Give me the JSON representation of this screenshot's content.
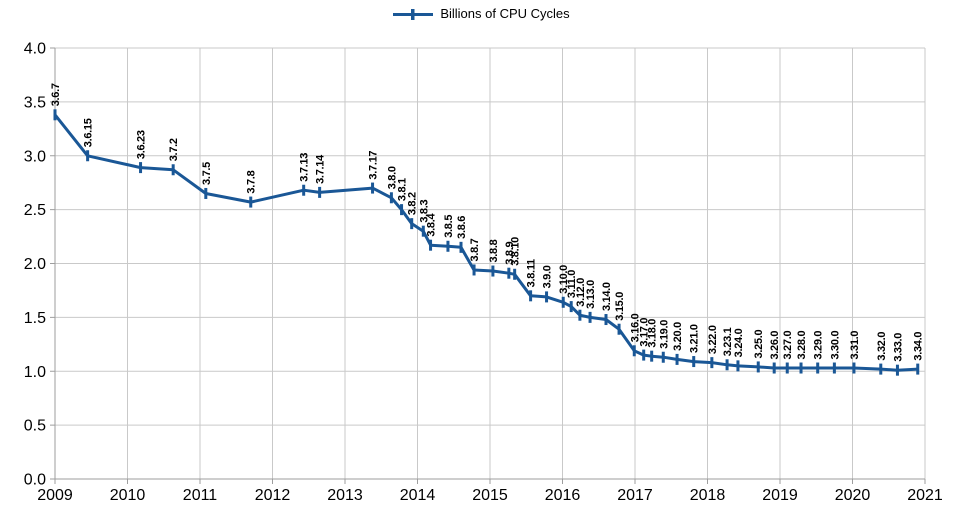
{
  "page": {
    "background": "#ffffff"
  },
  "colors": {
    "series": "#1a5796",
    "grid": "#c9c9c9",
    "axis": "#9e9e9e",
    "text": "#000000"
  },
  "chart_data": {
    "type": "line",
    "title": "",
    "legend_position": "top-center",
    "grid": true,
    "marker": "vertical-tick",
    "xlim": [
      2009,
      2021
    ],
    "ylim": [
      0,
      4
    ],
    "x_ticks": [
      2009,
      2010,
      2011,
      2012,
      2013,
      2014,
      2015,
      2016,
      2017,
      2018,
      2019,
      2020,
      2021
    ],
    "x_tick_labels": [
      "2009",
      "2010",
      "2011",
      "2012",
      "2013",
      "2014",
      "2015",
      "2016",
      "2017",
      "2018",
      "2019",
      "2020",
      "2021"
    ],
    "y_ticks": [
      0,
      0.5,
      1,
      1.5,
      2,
      2.5,
      3,
      3.5,
      4
    ],
    "y_tick_labels": [
      "0.0",
      "0.5",
      "1.0",
      "1.5",
      "2.0",
      "2.5",
      "3.0",
      "3.5",
      "4.0"
    ],
    "series": [
      {
        "name": "Billions of CPU Cycles",
        "points": [
          {
            "label": "3.6.7",
            "x": 2009.0,
            "y": 3.38
          },
          {
            "label": "3.6.15",
            "x": 2009.45,
            "y": 3.0
          },
          {
            "label": "3.6.23",
            "x": 2010.18,
            "y": 2.89
          },
          {
            "label": "3.7.2",
            "x": 2010.63,
            "y": 2.87
          },
          {
            "label": "3.7.5",
            "x": 2011.08,
            "y": 2.65
          },
          {
            "label": "3.7.8",
            "x": 2011.7,
            "y": 2.57
          },
          {
            "label": "3.7.13",
            "x": 2012.43,
            "y": 2.68
          },
          {
            "label": "3.7.14",
            "x": 2012.65,
            "y": 2.66
          },
          {
            "label": "3.7.17",
            "x": 2013.38,
            "y": 2.7
          },
          {
            "label": "3.8.0",
            "x": 2013.64,
            "y": 2.61
          },
          {
            "label": "3.8.1",
            "x": 2013.78,
            "y": 2.5
          },
          {
            "label": "3.8.2",
            "x": 2013.92,
            "y": 2.37
          },
          {
            "label": "3.8.3",
            "x": 2014.08,
            "y": 2.3
          },
          {
            "label": "3.8.4",
            "x": 2014.18,
            "y": 2.17
          },
          {
            "label": "3.8.5",
            "x": 2014.42,
            "y": 2.16
          },
          {
            "label": "3.8.6",
            "x": 2014.6,
            "y": 2.15
          },
          {
            "label": "3.8.7",
            "x": 2014.78,
            "y": 1.94
          },
          {
            "label": "3.8.8",
            "x": 2015.04,
            "y": 1.93
          },
          {
            "label": "3.8.9",
            "x": 2015.26,
            "y": 1.91
          },
          {
            "label": "3.8.10",
            "x": 2015.34,
            "y": 1.9
          },
          {
            "label": "3.8.11",
            "x": 2015.56,
            "y": 1.7
          },
          {
            "label": "3.9.0",
            "x": 2015.78,
            "y": 1.69
          },
          {
            "label": "3.10.0",
            "x": 2016.01,
            "y": 1.64
          },
          {
            "label": "3.11.0",
            "x": 2016.12,
            "y": 1.6
          },
          {
            "label": "3.12.0",
            "x": 2016.24,
            "y": 1.52
          },
          {
            "label": "3.13.0",
            "x": 2016.38,
            "y": 1.5
          },
          {
            "label": "3.14.0",
            "x": 2016.6,
            "y": 1.48
          },
          {
            "label": "3.15.0",
            "x": 2016.78,
            "y": 1.39
          },
          {
            "label": "3.16.0",
            "x": 2016.99,
            "y": 1.19
          },
          {
            "label": "3.17.0",
            "x": 2017.12,
            "y": 1.15
          },
          {
            "label": "3.18.0",
            "x": 2017.23,
            "y": 1.14
          },
          {
            "label": "3.19.0",
            "x": 2017.39,
            "y": 1.13
          },
          {
            "label": "3.20.0",
            "x": 2017.58,
            "y": 1.11
          },
          {
            "label": "3.21.0",
            "x": 2017.81,
            "y": 1.09
          },
          {
            "label": "3.22.0",
            "x": 2018.06,
            "y": 1.08
          },
          {
            "label": "3.23.1",
            "x": 2018.27,
            "y": 1.06
          },
          {
            "label": "3.24.0",
            "x": 2018.42,
            "y": 1.05
          },
          {
            "label": "3.25.0",
            "x": 2018.7,
            "y": 1.04
          },
          {
            "label": "3.26.0",
            "x": 2018.92,
            "y": 1.03
          },
          {
            "label": "3.27.0",
            "x": 2019.1,
            "y": 1.03
          },
          {
            "label": "3.28.0",
            "x": 2019.29,
            "y": 1.03
          },
          {
            "label": "3.29.0",
            "x": 2019.52,
            "y": 1.03
          },
          {
            "label": "3.30.0",
            "x": 2019.75,
            "y": 1.03
          },
          {
            "label": "3.31.0",
            "x": 2020.02,
            "y": 1.03
          },
          {
            "label": "3.32.0",
            "x": 2020.39,
            "y": 1.02
          },
          {
            "label": "3.33.0",
            "x": 2020.62,
            "y": 1.01
          },
          {
            "label": "3.34.0",
            "x": 2020.9,
            "y": 1.02
          }
        ]
      }
    ]
  }
}
